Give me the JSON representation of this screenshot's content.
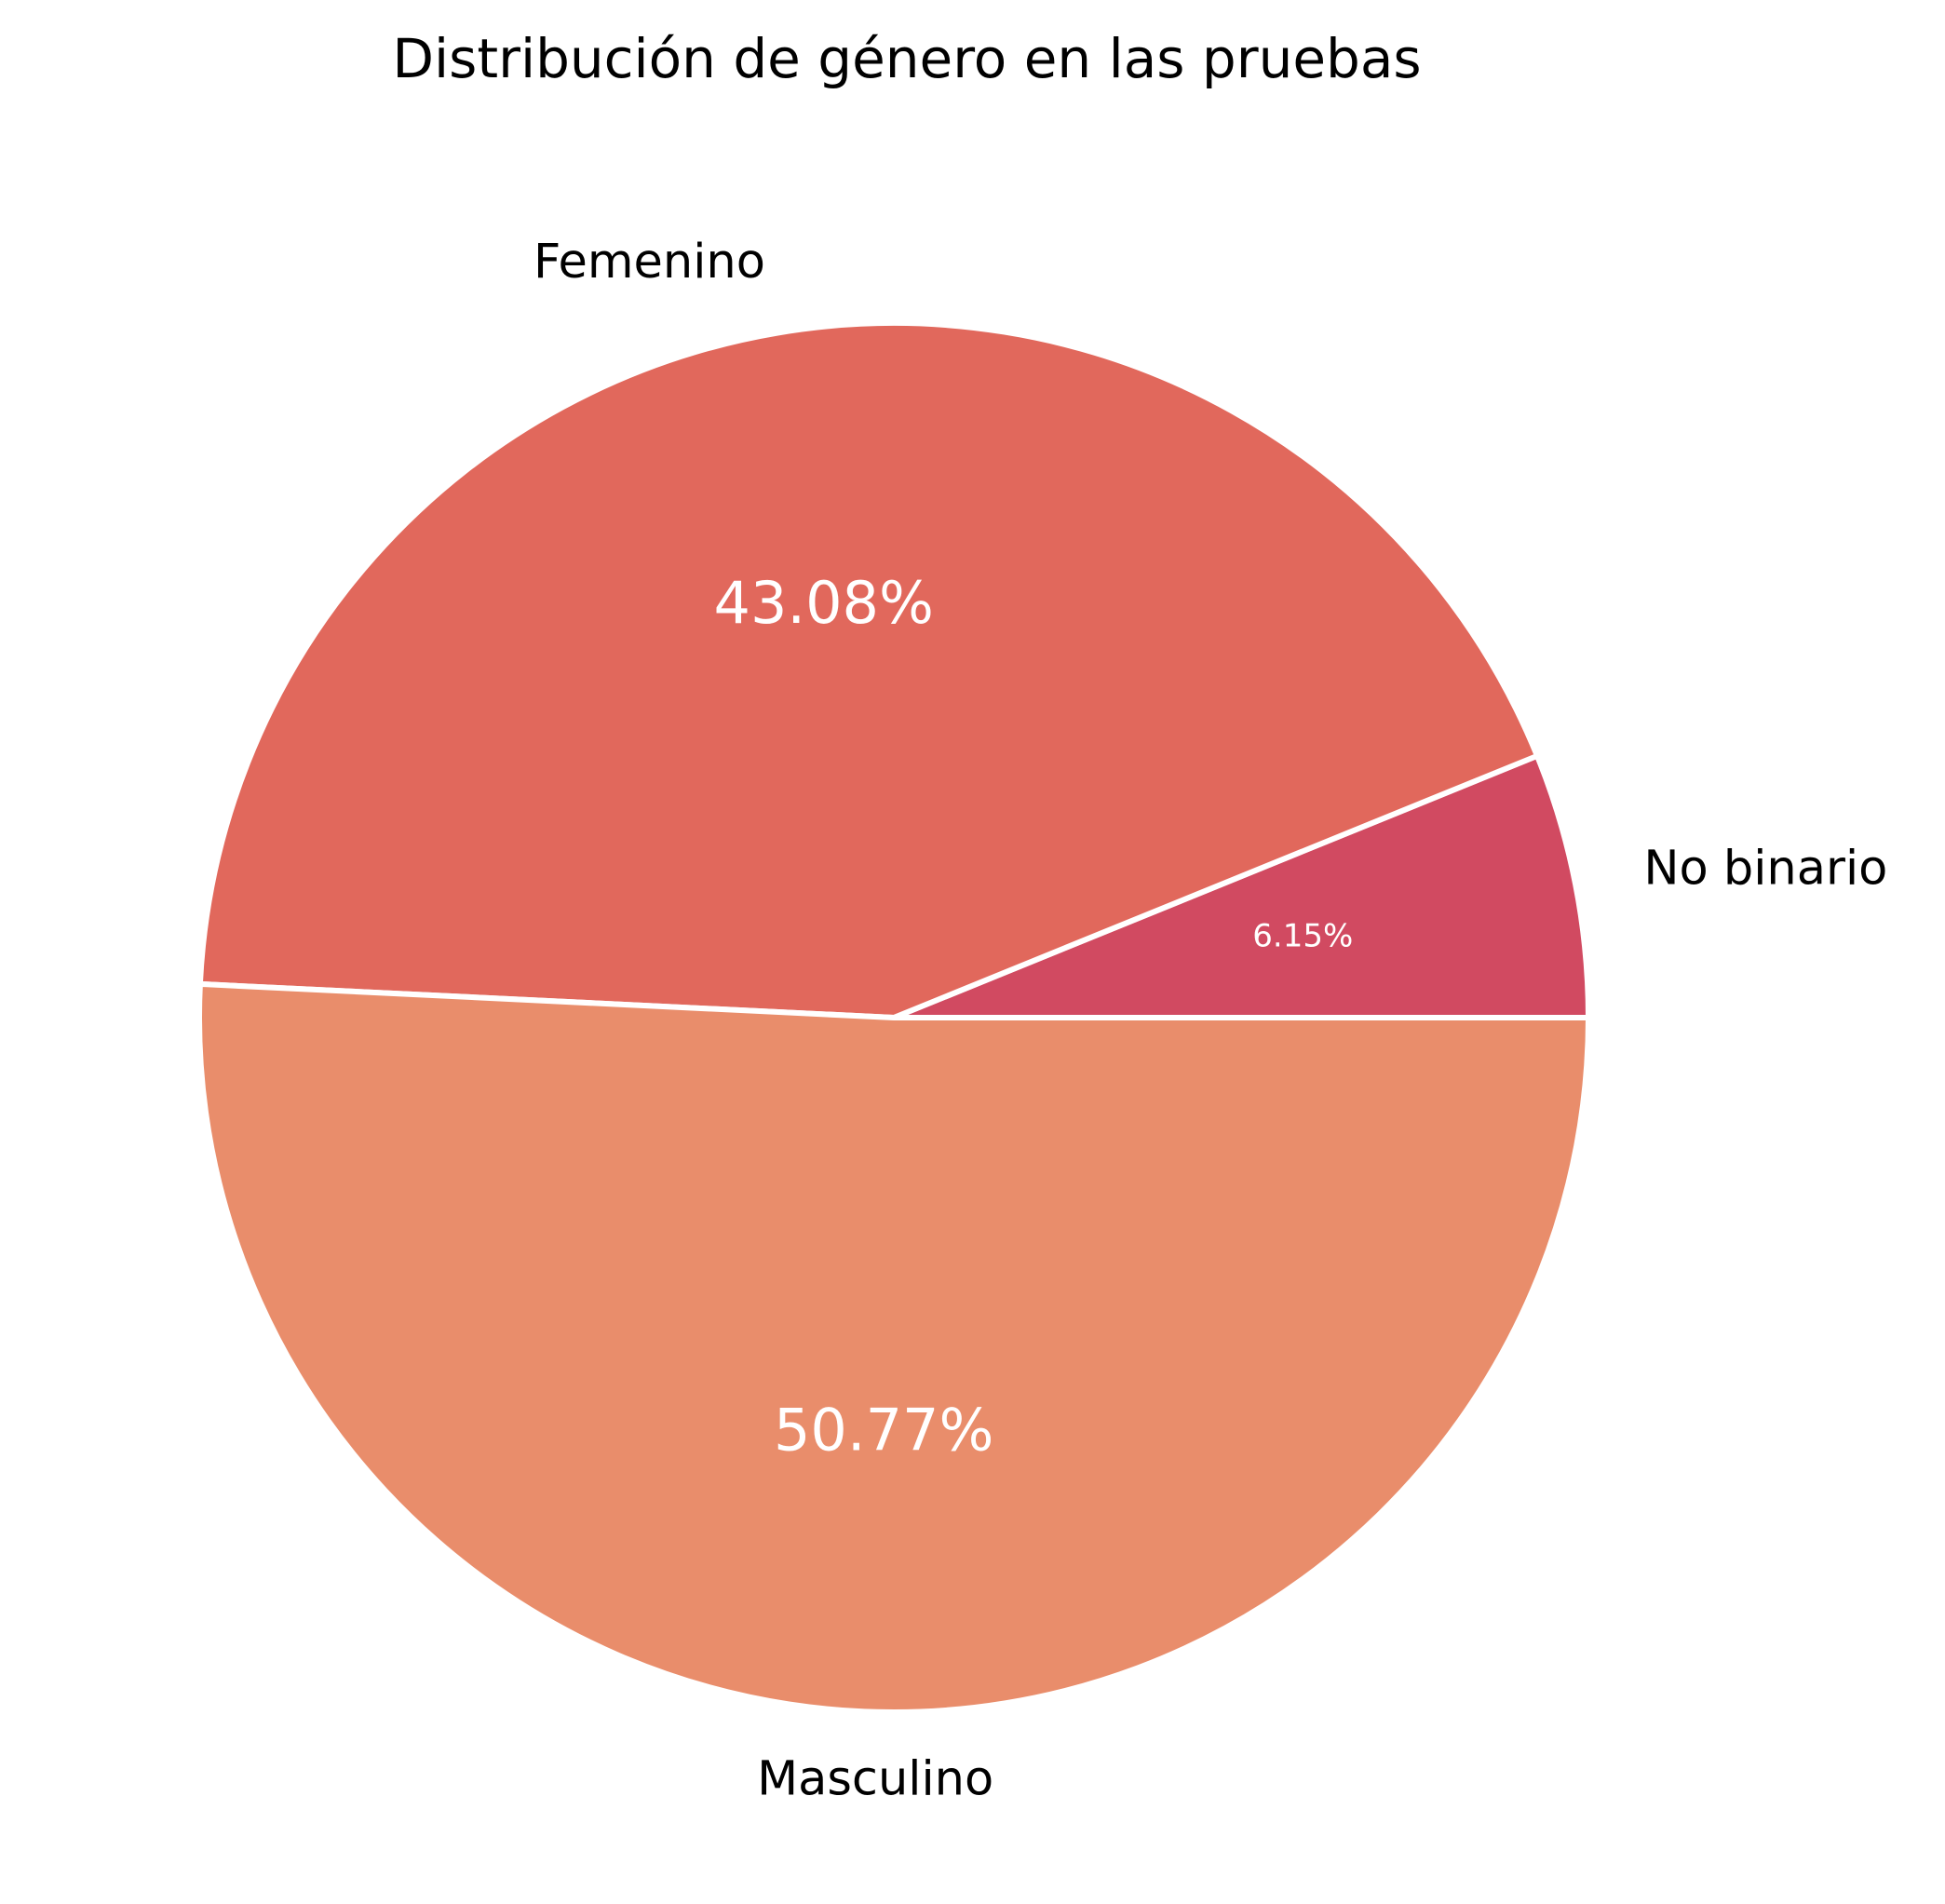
{
  "chart_data": {
    "type": "pie",
    "title": "Distribución de género en las pruebas",
    "slices": [
      {
        "label": "No binario",
        "value": 6.15,
        "pct_label": "6.15%",
        "color": "#d14a61"
      },
      {
        "label": "Femenino",
        "value": 43.08,
        "pct_label": "43.08%",
        "color": "#e1685c"
      },
      {
        "label": "Masculino",
        "value": 50.77,
        "pct_label": "50.77%",
        "color": "#e98d6b"
      }
    ],
    "start_angle_deg": 0,
    "direction": "counterclockwise",
    "edge_color": "#ffffff"
  }
}
